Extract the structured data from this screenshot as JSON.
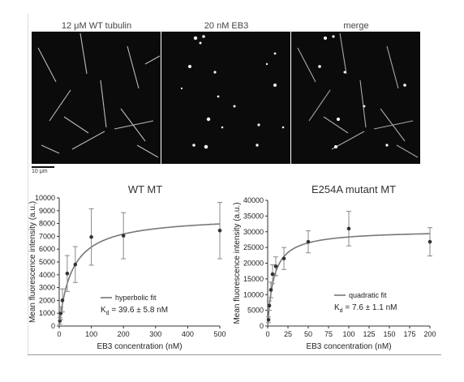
{
  "panels": {
    "wt_label": "12 μM WT tubulin",
    "eb3_label": "20 nM EB3",
    "merge_label": "merge",
    "scalebar_label": "10 μm"
  },
  "chart_data": [
    {
      "type": "scatter",
      "title": "WT MT",
      "xlabel": "EB3 concentration (nM)",
      "ylabel": "Mean fluorescence intensity (a.u.)",
      "xlim": [
        0,
        500
      ],
      "ylim": [
        0,
        10000
      ],
      "xticks": [
        0,
        100,
        200,
        300,
        400,
        500
      ],
      "yticks": [
        0,
        1000,
        2000,
        3000,
        4000,
        5000,
        6000,
        7000,
        8000,
        9000,
        10000
      ],
      "series": [
        {
          "name": "hyperbolic fit",
          "x": [
            2,
            5,
            10,
            25,
            50,
            100,
            200,
            500
          ],
          "y": [
            400,
            1000,
            2000,
            4100,
            4800,
            6950,
            7050,
            7450
          ],
          "yerr": [
            250,
            500,
            900,
            1400,
            1400,
            2200,
            1800,
            2200
          ]
        }
      ],
      "fit": {
        "model": "hyperbolic",
        "bmax": 8600,
        "kd": 39.6
      },
      "legend_label": "hyperbolic fit",
      "kd_label": "K",
      "kd_sub": "d",
      "kd_value": " = 39.6 ± 5.8 nM"
    },
    {
      "type": "scatter",
      "title": "E254A mutant MT",
      "xlabel": "EB3 concentration (nM)",
      "ylabel": "Mean fluorescence intensity (a.u.)",
      "xlim": [
        0,
        200
      ],
      "ylim": [
        0,
        40000
      ],
      "xticks": [
        0,
        25,
        50,
        75,
        100,
        125,
        150,
        175,
        200
      ],
      "yticks": [
        0,
        5000,
        10000,
        15000,
        20000,
        25000,
        30000,
        35000,
        40000
      ],
      "series": [
        {
          "name": "quadratic fit",
          "x": [
            1,
            2,
            4,
            6,
            10,
            20,
            50,
            100,
            200
          ],
          "y": [
            2000,
            6500,
            11500,
            16500,
            19000,
            21500,
            26800,
            31000,
            26800
          ],
          "yerr": [
            900,
            1500,
            2500,
            3000,
            3000,
            3500,
            3500,
            5500,
            4500
          ]
        }
      ],
      "fit": {
        "model": "quadratic",
        "bmax": 30500,
        "kd": 7.6
      },
      "legend_label": "quadratic fit",
      "kd_label": "K",
      "kd_sub": "d",
      "kd_value": " = 7.6 ± 1.1 nM"
    }
  ]
}
